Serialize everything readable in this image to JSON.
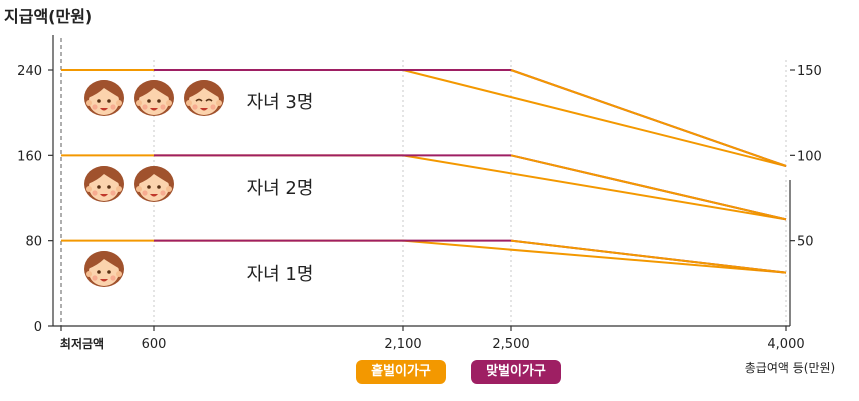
{
  "chart_data": {
    "type": "line",
    "ylabel": "지급액(만원)",
    "xlabel": "총급여액 등(만원)",
    "x_ticks": [
      {
        "value": 0,
        "label": "최저금액"
      },
      {
        "value": 600,
        "label": "600"
      },
      {
        "value": 2100,
        "label": "2,100"
      },
      {
        "value": 2500,
        "label": "2,500"
      },
      {
        "value": 4000,
        "label": "4,000"
      }
    ],
    "y_ticks_left": [
      "0",
      "80",
      "160",
      "240"
    ],
    "y_ticks_right": [
      "50",
      "100",
      "150"
    ],
    "xlim": [
      0,
      4000
    ],
    "ylim": [
      0,
      270
    ],
    "legend": [
      {
        "label": "홑벌이가구",
        "color": "#f39800"
      },
      {
        "label": "맞벌이가구",
        "color": "#9e1f63"
      }
    ],
    "groups": [
      {
        "label": "자녀 1명",
        "children": 1,
        "series": [
          {
            "household": "홑벌이가구",
            "color": "#f39800",
            "points": [
              [
                0,
                80
              ],
              [
                600,
                80
              ],
              [
                2100,
                80
              ],
              [
                4000,
                50
              ]
            ]
          },
          {
            "household": "맞벌이가구",
            "color": "#9e1f63",
            "points": [
              [
                600,
                80
              ],
              [
                2500,
                80
              ],
              [
                4000,
                50
              ]
            ]
          }
        ]
      },
      {
        "label": "자녀 2명",
        "children": 2,
        "series": [
          {
            "household": "홑벌이가구",
            "color": "#f39800",
            "points": [
              [
                0,
                160
              ],
              [
                600,
                160
              ],
              [
                2100,
                160
              ],
              [
                4000,
                100
              ]
            ]
          },
          {
            "household": "맞벌이가구",
            "color": "#9e1f63",
            "points": [
              [
                600,
                160
              ],
              [
                2500,
                160
              ],
              [
                4000,
                100
              ]
            ]
          }
        ]
      },
      {
        "label": "자녀 3명",
        "children": 3,
        "series": [
          {
            "household": "홑벌이가구",
            "color": "#f39800",
            "points": [
              [
                0,
                240
              ],
              [
                600,
                240
              ],
              [
                2100,
                240
              ],
              [
                4000,
                150
              ]
            ]
          },
          {
            "household": "맞벌이가구",
            "color": "#9e1f63",
            "points": [
              [
                600,
                240
              ],
              [
                2500,
                240
              ],
              [
                4000,
                150
              ]
            ]
          }
        ]
      }
    ],
    "cross_lines": [
      {
        "color": "#f39800",
        "points": [
          [
            2500,
            240
          ],
          [
            4000,
            150
          ]
        ]
      },
      {
        "color": "#f39800",
        "points": [
          [
            2500,
            160
          ],
          [
            4000,
            100
          ]
        ]
      },
      {
        "color": "#f39800",
        "points": [
          [
            2500,
            80
          ],
          [
            4000,
            50
          ]
        ]
      }
    ]
  }
}
